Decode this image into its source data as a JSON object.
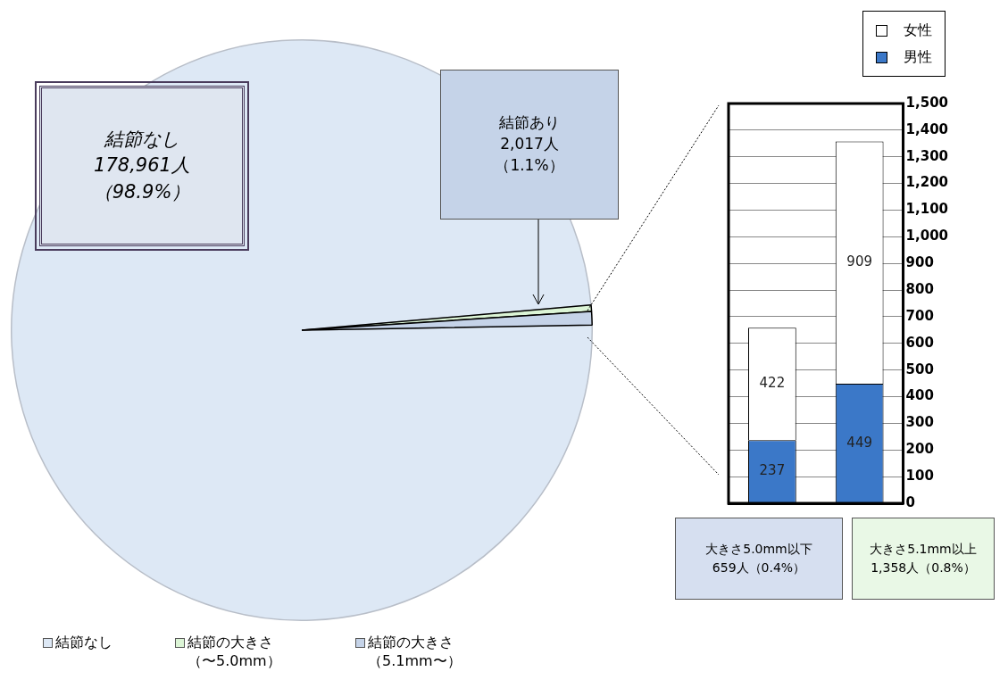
{
  "chart_data": [
    {
      "type": "pie",
      "categories": [
        "結節なし",
        "結節の大きさ（〜5.0mm）",
        "結節の大きさ（5.1mm〜）"
      ],
      "values": [
        98.89,
        0.36,
        0.75
      ],
      "colors": [
        "#dde8f5",
        "#dcf5d6",
        "#c5d3e8"
      ],
      "legend": "bottom left",
      "annotations": [
        "結節なし178,961人（98.9%）",
        "結節あり2,017人（1.1%）"
      ]
    },
    {
      "type": "bar",
      "categories": [
        null,
        null
      ],
      "stacked": true,
      "series": [
        {
          "name": "男性",
          "color": "#3b78c8",
          "values": [
            237,
            449
          ]
        },
        {
          "name": "女性",
          "color": "#ffffff",
          "values": [
            422,
            909
          ]
        }
      ],
      "ylim": [
        0,
        1500
      ],
      "yticks": [
        0,
        100,
        200,
        300,
        400,
        500,
        600,
        700,
        800,
        900,
        {
          "value": 1000,
          "label": "1,000"
        },
        {
          "value": 1100,
          "label": "1,100"
        },
        {
          "value": 1200,
          "label": "1,200"
        },
        {
          "value": 1300,
          "label": "1,300"
        },
        {
          "value": 1400,
          "label": "1,400"
        },
        {
          "value": 1500,
          "label": "1,500"
        }
      ],
      "grid": "y",
      "legend": "top right",
      "data_labels": true,
      "annotations": [
        "大きさ5.0mm以下\n659人（0.4%）",
        "大きさ5.1mm以上\n1,358人（0.8%）"
      ]
    }
  ]
}
